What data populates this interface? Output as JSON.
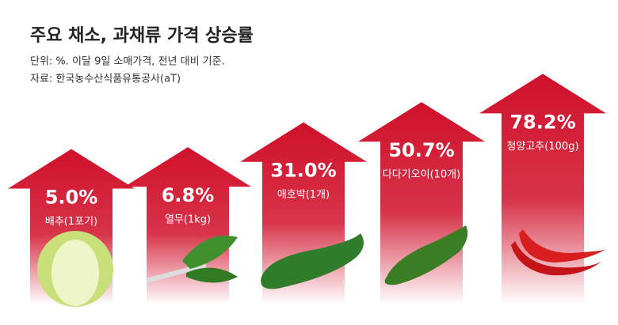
{
  "chart_data": {
    "type": "arrow-bar",
    "title": "주요 채소, 과채류 가격 상승률",
    "subtitle": "단위: %. 이달 9일 소매가격, 전년 대비 기준.",
    "source": "자료: 한국농수산식품유통공사(aT)",
    "categories": [
      "배추(1포기)",
      "열무(1kg)",
      "애호박(1개)",
      "다다기오이(10개)",
      "청양고추(100g)"
    ],
    "values": [
      5.0,
      6.8,
      31.0,
      50.7,
      78.2
    ],
    "value_labels": [
      "5.0%",
      "6.8%",
      "31.0%",
      "50.7%",
      "78.2%"
    ],
    "color": "#d0102a"
  }
}
